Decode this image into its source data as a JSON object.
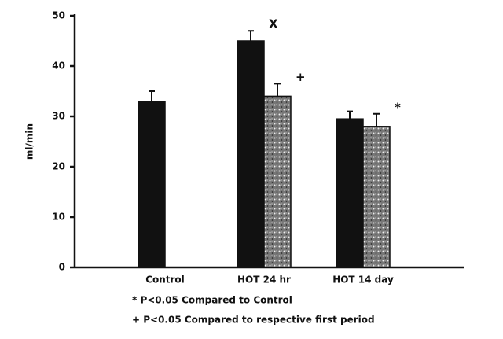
{
  "chart_data": {
    "type": "bar",
    "y_label": "ml/min",
    "categories": [
      "Control",
      "HOT 24 hr",
      "HOT 14 day"
    ],
    "series": [
      {
        "color": "#111111",
        "values": [
          33,
          45,
          29.5
        ],
        "errors": [
          2,
          2,
          1.5
        ]
      },
      {
        "color": "#888888",
        "pattern": "speckled",
        "values": [
          null,
          34,
          28
        ],
        "errors": [
          null,
          2.5,
          2.5
        ]
      }
    ],
    "ylim": [
      0,
      50
    ],
    "yticks": [
      0,
      10,
      20,
      30,
      40,
      50
    ],
    "annotations": [
      {
        "text": "X",
        "series": 0,
        "category": 1
      },
      {
        "text": "+",
        "series": 1,
        "category": 1
      },
      {
        "text": "*",
        "series": 1,
        "category": 2
      }
    ],
    "notes": [
      "* P<0.05 Compared to Control",
      "+ P<0.05 Compared to respective first period"
    ]
  }
}
